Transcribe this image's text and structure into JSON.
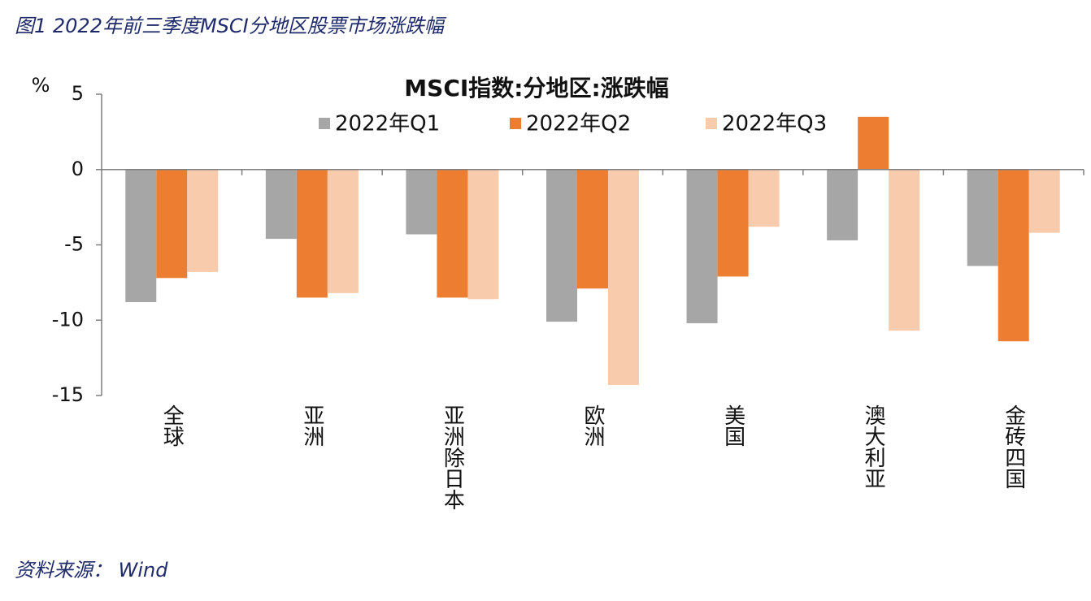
{
  "header": "图1 2022年前三季度MSCI分地区股票市场涨跌幅",
  "source": "资料来源： Wind",
  "chart_data": {
    "type": "bar",
    "title": "MSCI指数:分地区:涨跌幅",
    "y_label": "%",
    "categories": [
      "全球",
      "亚洲",
      "亚洲除日本",
      "欧洲",
      "美国",
      "澳大利亚",
      "金砖四国"
    ],
    "series": [
      {
        "name": "2022年Q1",
        "color": "#a6a6a6",
        "values": [
          -8.8,
          -4.6,
          -4.3,
          -10.1,
          -10.2,
          -4.7,
          -6.4
        ]
      },
      {
        "name": "2022年Q2",
        "color": "#ed7d31",
        "values": [
          -7.2,
          -8.5,
          -8.5,
          -7.9,
          -7.1,
          3.5,
          -11.4
        ]
      },
      {
        "name": "2022年Q3",
        "color": "#f8cbad",
        "values": [
          -6.8,
          -8.2,
          -8.6,
          -14.3,
          -3.8,
          -10.7,
          -4.2
        ]
      }
    ],
    "ylim": [
      -15,
      5
    ],
    "yticks": [
      -15,
      -10,
      -5,
      0,
      5
    ]
  }
}
